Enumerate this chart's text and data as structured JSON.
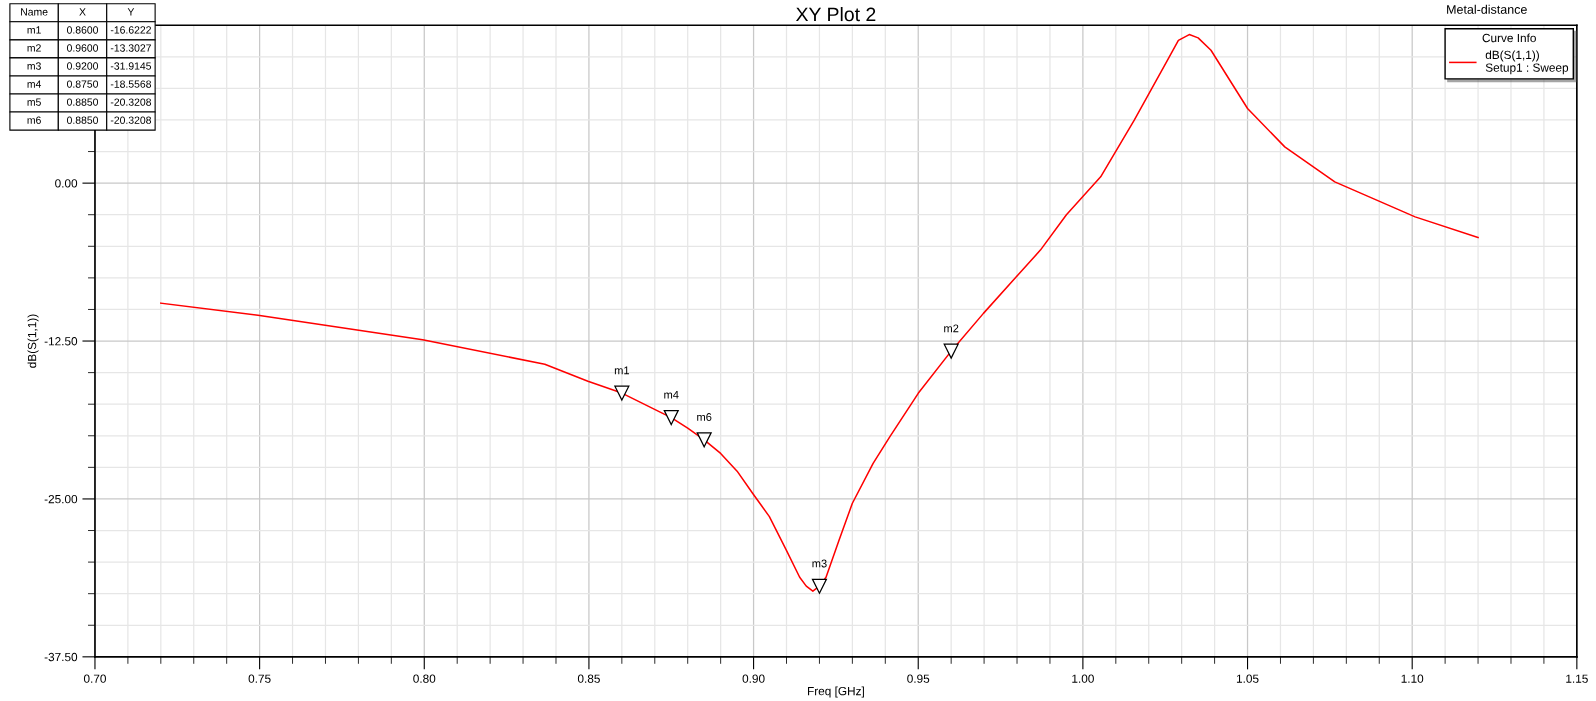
{
  "chart_data": {
    "type": "line",
    "title": "XY Plot 2",
    "xlabel": "Freq [GHz]",
    "ylabel": "dB(S(1,1))",
    "legend_title": "Curve Info",
    "series": [
      {
        "name": "dB(S(1,1))\nSetup1 : Sweep",
        "color": "#ff0000",
        "x": [
          0.72,
          0.7495,
          0.7995,
          0.8366,
          0.8497,
          0.86,
          0.875,
          0.88,
          0.885,
          0.89,
          0.895,
          0.8997,
          0.9048,
          0.9099,
          0.914,
          0.916,
          0.918,
          0.92,
          0.922,
          0.926,
          0.93,
          0.9363,
          0.9414,
          0.95,
          0.96,
          0.9698,
          0.9871,
          0.995,
          1.0054,
          1.0156,
          1.0257,
          1.029,
          1.0323,
          1.035,
          1.0389,
          1.05,
          1.0613,
          1.0765,
          1.1009,
          1.12
        ],
        "values": [
          -9.5,
          -10.46,
          -12.4,
          -14.34,
          -15.68,
          -16.62,
          -18.56,
          -19.4,
          -20.32,
          -21.4,
          -22.8,
          -24.55,
          -26.4,
          -29.03,
          -31.2,
          -31.9,
          -32.3,
          -31.91,
          -31.2,
          -28.24,
          -25.34,
          -22.18,
          -20.07,
          -16.64,
          -13.3,
          -10.31,
          -5.3,
          -2.5,
          0.5,
          4.98,
          9.73,
          11.3,
          11.76,
          11.5,
          10.52,
          5.91,
          2.87,
          0.1,
          -2.67,
          -4.3
        ]
      }
    ],
    "xlim": [
      0.7,
      1.15
    ],
    "xticks": [
      {
        "value": 0.7,
        "label": "0.70"
      },
      {
        "value": 0.75,
        "label": "0.75"
      },
      {
        "value": 0.8,
        "label": "0.80"
      },
      {
        "value": 0.85,
        "label": "0.85"
      },
      {
        "value": 0.9,
        "label": "0.90"
      },
      {
        "value": 0.95,
        "label": "0.95"
      },
      {
        "value": 1.0,
        "label": "1.00"
      },
      {
        "value": 1.05,
        "label": "1.05"
      },
      {
        "value": 1.1,
        "label": "1.10"
      },
      {
        "value": 1.15,
        "label": "1.15"
      }
    ],
    "ylim": [
      -37.5,
      12.5
    ],
    "yticks": [
      {
        "value": -37.5,
        "label": "-37.50"
      },
      {
        "value": -25,
        "label": "-25.00"
      },
      {
        "value": -12.5,
        "label": "-12.50"
      },
      {
        "value": 0,
        "label": "0.00"
      },
      {
        "value": 12.5,
        "label": null
      }
    ],
    "grid": true,
    "legend": "top right",
    "line_style": "solid",
    "marker": "none",
    "annotations": [
      "Metal-distance",
      "Name",
      "X",
      "Y",
      "m1",
      "0.8600",
      "-16.6222",
      "m2",
      "0.9600",
      "-13.3027",
      "m3",
      "0.9200",
      "-31.9145",
      "m4",
      "0.8750",
      "-18.5568",
      "m5",
      "0.8850",
      "-20.3208",
      "m6",
      "0.8850",
      "-20.3208",
      {
        "text": "m1",
        "x": 0.86,
        "y": -16.6222
      },
      {
        "text": "m2",
        "x": 0.96,
        "y": -13.3027
      },
      {
        "text": "m3",
        "x": 0.92,
        "y": -31.9145
      },
      {
        "text": "m4",
        "x": 0.875,
        "y": -18.5568
      },
      {
        "text": "m6",
        "x": 0.885,
        "y": -20.3208
      }
    ]
  }
}
